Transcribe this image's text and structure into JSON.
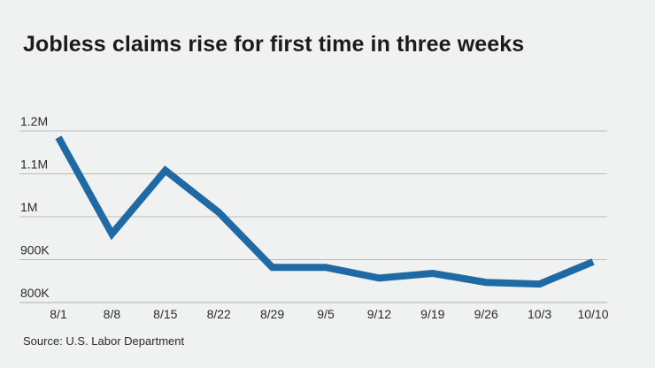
{
  "chart_data": {
    "type": "line",
    "title": "Jobless claims rise for first time in three weeks",
    "xlabel": "",
    "ylabel": "",
    "categories": [
      "8/1",
      "8/8",
      "8/15",
      "8/22",
      "8/29",
      "9/5",
      "9/12",
      "9/19",
      "9/26",
      "10/3",
      "10/10"
    ],
    "series": [
      {
        "values": [
          1185000,
          960000,
          1108000,
          1010000,
          882000,
          882000,
          857000,
          868000,
          847000,
          843000,
          895000
        ]
      }
    ],
    "yticks": [
      {
        "value": 800000,
        "label": "800K"
      },
      {
        "value": 900000,
        "label": "900K"
      },
      {
        "value": 1000000,
        "label": "1M"
      },
      {
        "value": 1100000,
        "label": "1.1M"
      },
      {
        "value": 1200000,
        "label": "1.2M"
      }
    ],
    "ylim": [
      800000,
      1200000
    ],
    "grid": true,
    "line_color": "#1f6aa5",
    "grid_color": "#b9bbbd",
    "source": "Source: U.S. Labor Department"
  }
}
